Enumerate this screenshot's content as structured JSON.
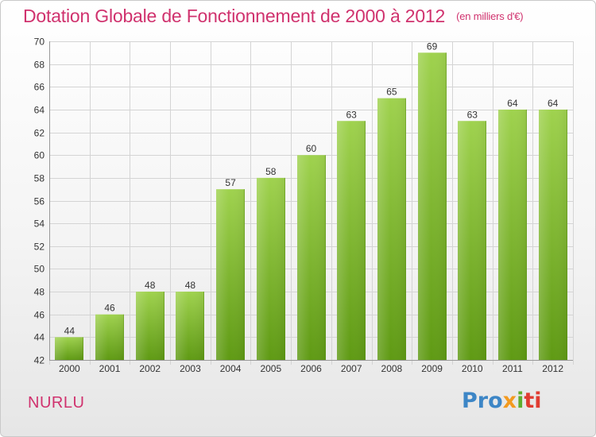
{
  "header": {
    "title": "Dotation Globale de Fonctionnement de 2000 à 2012",
    "unit": "(en milliers d'€)"
  },
  "footer": {
    "commune": "NURLU",
    "logo_parts": [
      "Pro",
      "x",
      "i",
      "ti"
    ]
  },
  "colors": {
    "title": "#d0326e",
    "bar_top": "#9fd24e",
    "bar_bottom": "#5f9a14",
    "logo_blue": "#3d86c6",
    "logo_orange": "#f29a1f",
    "logo_green": "#5fae2e",
    "logo_red": "#e03c31"
  },
  "chart_data": {
    "type": "bar",
    "title": "Dotation Globale de Fonctionnement de 2000 à 2012",
    "subtitle": "(en milliers d'€)",
    "categories": [
      "2000",
      "2001",
      "2002",
      "2003",
      "2004",
      "2005",
      "2006",
      "2007",
      "2008",
      "2009",
      "2010",
      "2011",
      "2012"
    ],
    "values": [
      44,
      46,
      48,
      48,
      57,
      58,
      60,
      63,
      65,
      69,
      63,
      64,
      64
    ],
    "ylim": [
      42,
      70
    ],
    "yticks": [
      42,
      44,
      46,
      48,
      50,
      52,
      54,
      56,
      58,
      60,
      62,
      64,
      66,
      68,
      70
    ],
    "grid": true,
    "xlabel": "",
    "ylabel": ""
  }
}
